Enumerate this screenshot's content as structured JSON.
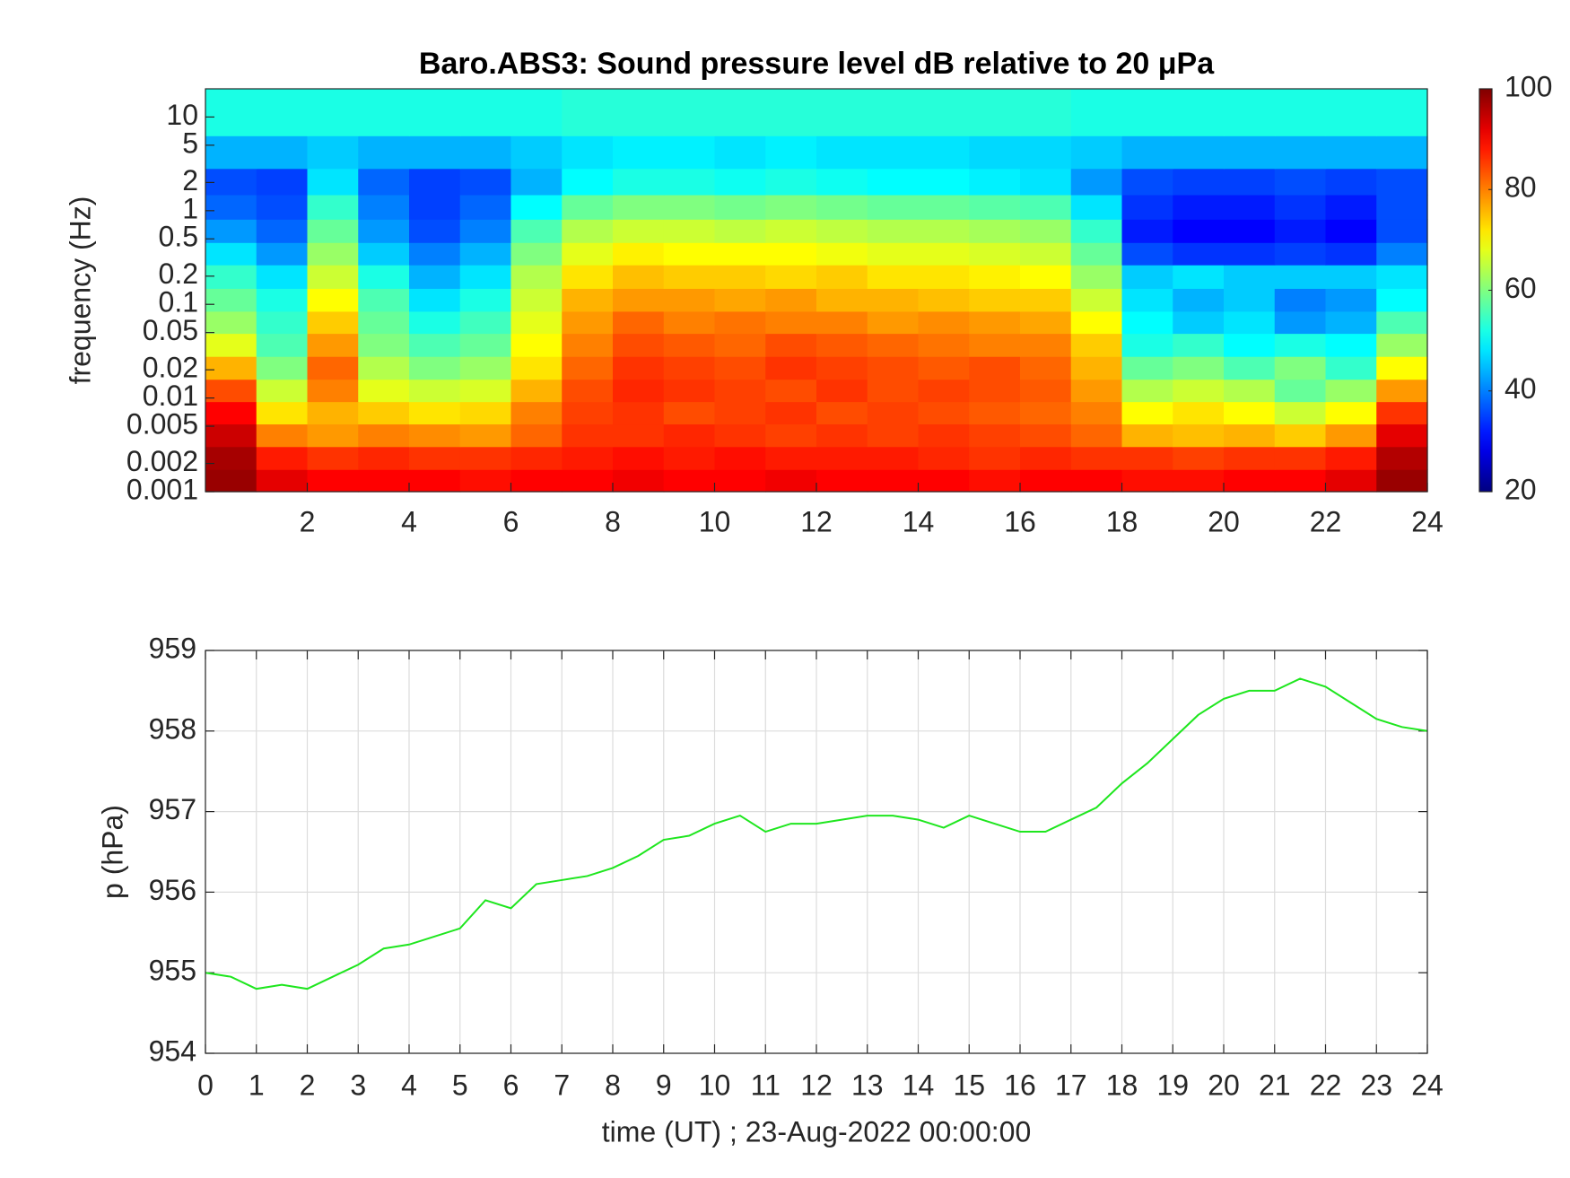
{
  "chart_data": [
    {
      "type": "heatmap",
      "title": "Baro.ABS3: Sound pressure level dB relative to 20 μPa",
      "ylabel": "frequency (Hz)",
      "colormap": "jet",
      "ylog": true,
      "xlim": [
        0,
        24
      ],
      "xticks": [
        2,
        4,
        6,
        8,
        10,
        12,
        14,
        16,
        18,
        20,
        22,
        24
      ],
      "ylim": [
        0.001,
        20
      ],
      "yticks": [
        0.001,
        0.002,
        0.005,
        0.01,
        0.02,
        0.05,
        0.1,
        0.2,
        0.5,
        1,
        2,
        5,
        10
      ],
      "clim": [
        20,
        100
      ],
      "cticks": [
        20,
        40,
        60,
        80,
        100
      ],
      "x": [
        0.5,
        1.5,
        2.5,
        3.5,
        4.5,
        5.5,
        6.5,
        7.5,
        8.5,
        9.5,
        10.5,
        11.5,
        12.5,
        13.5,
        14.5,
        15.5,
        16.5,
        17.5,
        18.5,
        19.5,
        20.5,
        21.5,
        22.5,
        23.5
      ],
      "y": [
        0.0013,
        0.0023,
        0.004,
        0.007,
        0.012,
        0.021,
        0.037,
        0.065,
        0.11,
        0.2,
        0.35,
        0.6,
        1.1,
        2,
        4,
        10
      ],
      "values": [
        [
          98,
          92,
          90,
          90,
          90,
          89,
          90,
          90,
          91,
          90,
          90,
          91,
          90,
          90,
          90,
          89,
          90,
          90,
          89,
          89,
          90,
          90,
          92,
          98
        ],
        [
          97,
          88,
          86,
          87,
          86,
          86,
          87,
          88,
          89,
          88,
          89,
          88,
          88,
          88,
          87,
          86,
          87,
          86,
          86,
          85,
          86,
          86,
          88,
          96
        ],
        [
          94,
          80,
          78,
          80,
          79,
          78,
          82,
          86,
          86,
          87,
          86,
          85,
          86,
          85,
          86,
          85,
          84,
          82,
          76,
          75,
          76,
          74,
          78,
          92
        ],
        [
          90,
          72,
          76,
          74,
          72,
          73,
          80,
          85,
          86,
          84,
          85,
          86,
          84,
          85,
          84,
          83,
          82,
          80,
          70,
          72,
          70,
          66,
          70,
          86
        ],
        [
          84,
          66,
          80,
          68,
          66,
          67,
          76,
          84,
          87,
          86,
          85,
          84,
          86,
          84,
          85,
          84,
          83,
          78,
          64,
          66,
          64,
          58,
          62,
          78
        ],
        [
          76,
          60,
          82,
          64,
          60,
          62,
          72,
          82,
          86,
          85,
          84,
          86,
          85,
          84,
          83,
          84,
          82,
          76,
          58,
          60,
          56,
          60,
          54,
          70
        ],
        [
          68,
          56,
          78,
          60,
          56,
          58,
          70,
          80,
          84,
          83,
          82,
          84,
          83,
          82,
          81,
          80,
          80,
          74,
          52,
          54,
          50,
          52,
          50,
          62
        ],
        [
          62,
          54,
          74,
          58,
          52,
          55,
          68,
          78,
          82,
          80,
          81,
          80,
          80,
          78,
          79,
          78,
          77,
          70,
          50,
          46,
          48,
          42,
          44,
          56
        ],
        [
          58,
          52,
          70,
          56,
          48,
          52,
          66,
          76,
          78,
          78,
          77,
          78,
          76,
          76,
          75,
          74,
          74,
          66,
          48,
          44,
          46,
          40,
          42,
          50
        ],
        [
          54,
          48,
          66,
          52,
          44,
          48,
          64,
          72,
          75,
          74,
          74,
          73,
          74,
          72,
          72,
          71,
          70,
          62,
          46,
          48,
          46,
          46,
          46,
          48
        ],
        [
          48,
          42,
          62,
          46,
          40,
          44,
          60,
          68,
          71,
          70,
          70,
          70,
          69,
          68,
          68,
          67,
          66,
          58,
          36,
          34,
          34,
          35,
          34,
          40
        ],
        [
          42,
          38,
          58,
          42,
          36,
          40,
          56,
          64,
          66,
          66,
          65,
          66,
          65,
          64,
          64,
          63,
          62,
          54,
          32,
          30,
          30,
          32,
          30,
          36
        ],
        [
          38,
          36,
          54,
          40,
          35,
          38,
          50,
          58,
          60,
          60,
          59,
          60,
          59,
          58,
          58,
          57,
          56,
          48,
          34,
          32,
          32,
          34,
          32,
          36
        ],
        [
          36,
          35,
          48,
          38,
          35,
          36,
          44,
          50,
          52,
          52,
          51,
          52,
          51,
          50,
          50,
          49,
          48,
          42,
          36,
          35,
          35,
          36,
          35,
          36
        ],
        [
          44,
          44,
          46,
          44,
          44,
          44,
          46,
          48,
          49,
          49,
          48,
          49,
          48,
          48,
          48,
          47,
          47,
          46,
          44,
          44,
          44,
          44,
          44,
          44
        ],
        [
          52,
          52,
          52,
          52,
          52,
          52,
          52,
          53,
          53,
          53,
          53,
          53,
          53,
          53,
          53,
          53,
          53,
          52,
          52,
          52,
          52,
          52,
          52,
          52
        ]
      ]
    },
    {
      "type": "line",
      "xlabel": "time (UT) ; 23-Aug-2022 00:00:00",
      "ylabel": "p (hPa)",
      "color": "#1ee61e",
      "grid": true,
      "xlim": [
        0,
        24
      ],
      "xticks": [
        0,
        1,
        2,
        3,
        4,
        5,
        6,
        7,
        8,
        9,
        10,
        11,
        12,
        13,
        14,
        15,
        16,
        17,
        18,
        19,
        20,
        21,
        22,
        23,
        24
      ],
      "ylim": [
        954,
        959
      ],
      "yticks": [
        954,
        955,
        956,
        957,
        958,
        959
      ],
      "x": [
        0,
        0.5,
        1,
        1.5,
        2,
        2.5,
        3,
        3.5,
        4,
        4.5,
        5,
        5.5,
        6,
        6.5,
        7,
        7.5,
        8,
        8.5,
        9,
        9.5,
        10,
        10.5,
        11,
        11.5,
        12,
        12.5,
        13,
        13.5,
        14,
        14.5,
        15,
        15.5,
        16,
        16.5,
        17,
        17.5,
        18,
        18.5,
        19,
        19.5,
        20,
        20.5,
        21,
        21.5,
        22,
        22.5,
        23,
        23.5,
        24
      ],
      "values": [
        955.0,
        954.95,
        954.8,
        954.85,
        954.8,
        954.95,
        955.1,
        955.3,
        955.35,
        955.45,
        955.55,
        955.9,
        955.8,
        956.1,
        956.15,
        956.2,
        956.3,
        956.45,
        956.65,
        956.7,
        956.85,
        956.95,
        956.75,
        956.85,
        956.85,
        956.9,
        956.95,
        956.95,
        956.9,
        956.8,
        956.95,
        956.85,
        956.75,
        956.75,
        956.9,
        957.05,
        957.35,
        957.6,
        957.9,
        958.2,
        958.4,
        958.5,
        958.5,
        958.65,
        958.55,
        958.35,
        958.15,
        958.05,
        958.0
      ]
    }
  ]
}
